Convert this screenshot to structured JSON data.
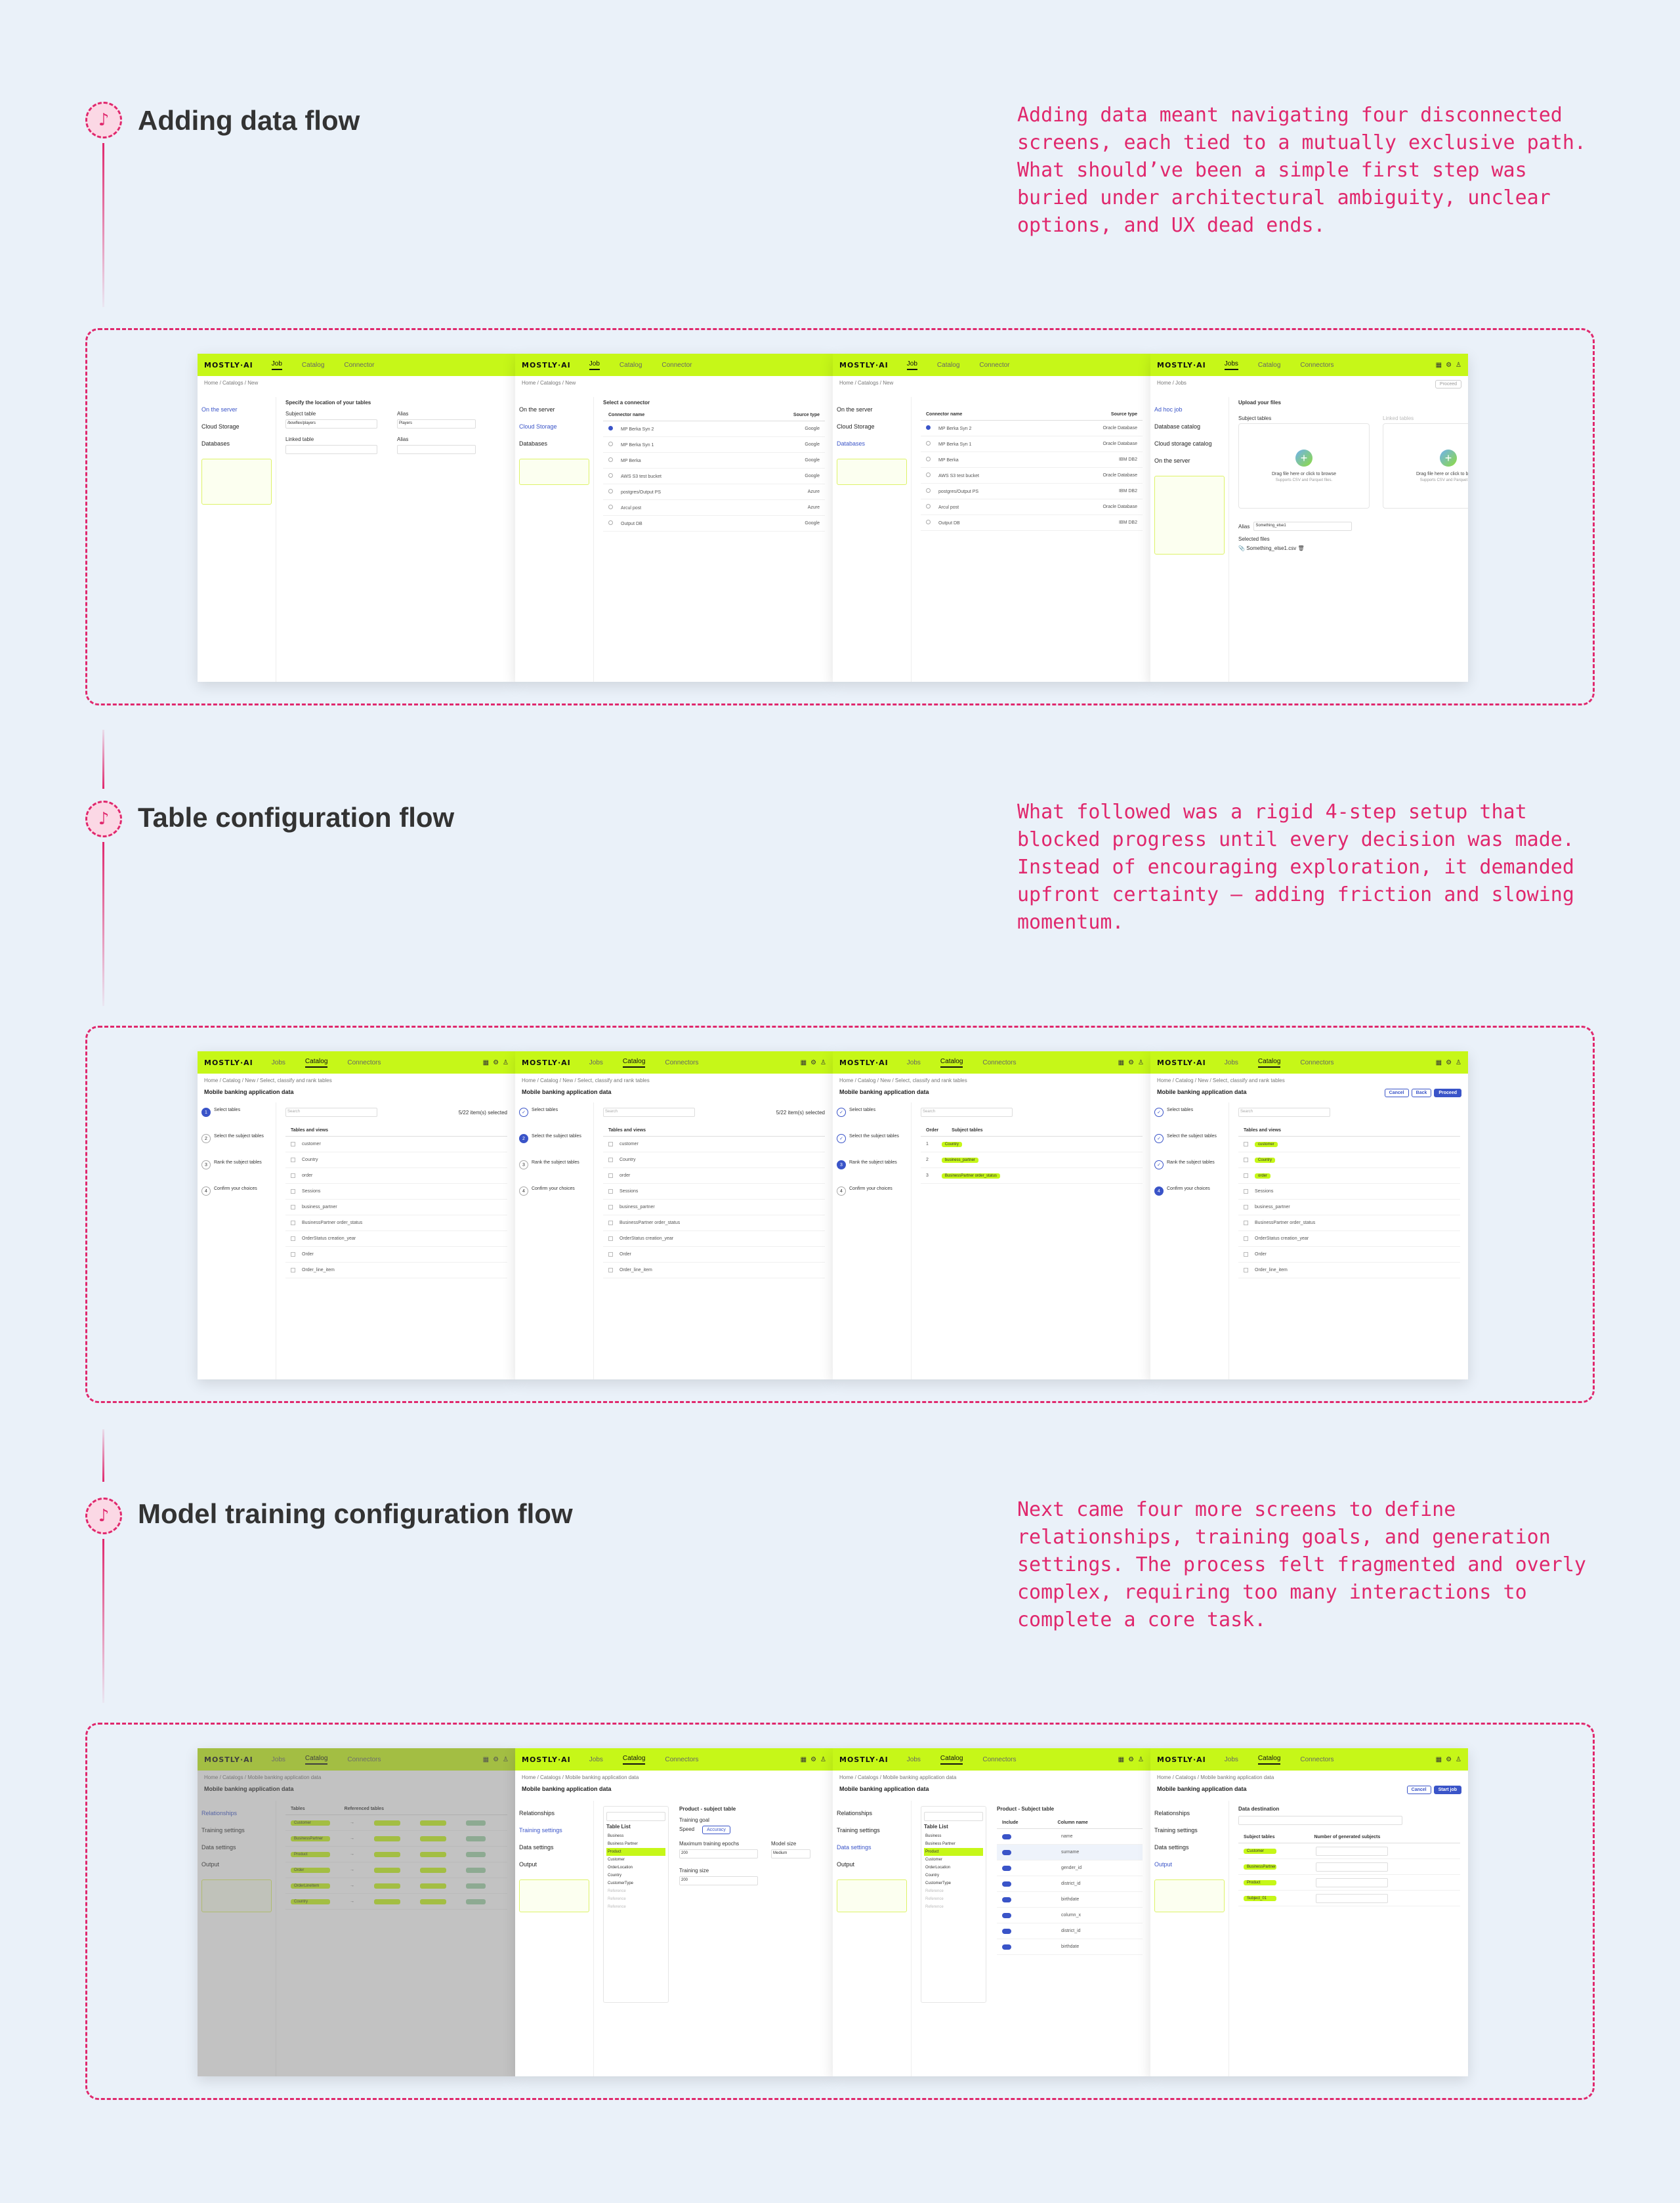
{
  "sections": [
    {
      "title": "Adding data flow",
      "description": "Adding data meant navigating four disconnected screens, each tied to a mutually exclusive path. What should’ve been a simple first step was buried under architectural ambiguity, unclear options, and UX dead ends."
    },
    {
      "title": "Table configuration flow",
      "description": "What followed was a rigid 4-step setup that blocked progress until every decision was made. Instead of encouraging exploration, it demanded upfront certainty — adding friction and slowing momentum."
    },
    {
      "title": "Model training configuration flow",
      "description": "Next came four more screens to define relationships, training goals, and generation settings. The process felt fragmented and overly complex, requiring too many interactions to complete a core task."
    }
  ],
  "app": {
    "logo": "MOSTLY·AI",
    "nav_a": [
      "Job",
      "Catalog",
      "Connector"
    ],
    "nav_b": [
      "Jobs",
      "Catalog",
      "Connectors"
    ]
  },
  "flow1": {
    "crumb": "Home / Catalogs / New",
    "crumb4": "Home / Jobs",
    "side": [
      "On the server",
      "Cloud Storage",
      "Databases"
    ],
    "side4": [
      "Ad hoc job",
      "Database catalog",
      "Cloud storage catalog",
      "On the server"
    ],
    "s1_heading": "Specify the location of your tables",
    "s1_labels": [
      "Subject table",
      "Alias",
      "Linked table",
      "Alias"
    ],
    "s1_values": [
      "/bowflex/players",
      "Players"
    ],
    "s2_heading": "Select a connector",
    "conn_header": [
      "Connector name",
      "Source type"
    ],
    "connectors": [
      "MP Berka Syn 2",
      "MP Berka Syn 1",
      "MP Berka",
      "AWS S3 test bucket",
      "postgres/Output PS",
      "Arcul post",
      "Output DB"
    ],
    "sources2": [
      "Google",
      "Google",
      "Google",
      "Google",
      "Azure",
      "Azure",
      "Google"
    ],
    "sources3": [
      "Oracle Database",
      "Oracle Database",
      "IBM DB2",
      "Oracle Database",
      "IBM DB2",
      "Oracle Database",
      "IBM DB2"
    ],
    "s4_heading": "Upload your files",
    "s4_labels": [
      "Subject tables",
      "Linked tables"
    ],
    "upload_title": "Drag file here or click to browse",
    "upload_sub": "Supports CSV and Parquet files.",
    "s4_alias": "Alias",
    "s4_alias_val": "Something_else1",
    "s4_selected": "Selected files",
    "s4_file": "Something_else1.csv",
    "proceed": "Proceed"
  },
  "flow2": {
    "crumb": "Home / Catalog / New / Select, classify and rank tables",
    "title": "Mobile banking application data",
    "steps": [
      "Select tables",
      "Select the subject tables",
      "Rank the subject tables",
      "Confirm your choices"
    ],
    "search": "Search",
    "selected": "5/22 item(s) selected",
    "th": "Tables and views",
    "tables": [
      "customer",
      "Country",
      "order",
      "Sessions",
      "business_partner",
      "BusinessPartner order_status",
      "OrderStatus creation_year",
      "Order",
      "Order_line_item"
    ],
    "rank_header": [
      "Order",
      "Subject tables"
    ],
    "rank_rows": [
      "Country",
      "business_partner",
      "BusinessPartner order_status"
    ],
    "buttons": [
      "Cancel",
      "Back",
      "Proceed"
    ]
  },
  "flow3": {
    "crumb": "Home / Catalogs / Mobile banking application data",
    "title": "Mobile banking application data",
    "side": [
      "Relationships",
      "Training settings",
      "Data settings",
      "Output"
    ],
    "s1_th": [
      "Tables",
      "Referenced tables"
    ],
    "s1_rows": [
      "Customer",
      "BusinessPartner",
      "Product",
      "Order",
      "OrderLineItem",
      "Country"
    ],
    "table_list": "Table List",
    "list_items": [
      "Business",
      "Business Partner",
      "Product",
      "Customer",
      "OrderLocation",
      "Country",
      "CustomerType",
      "Reference",
      "Reference",
      "Reference"
    ],
    "s2_heading": "Product - subject table",
    "s2_goal": "Training goal",
    "s2_goal_opts": [
      "Speed",
      "Accuracy"
    ],
    "s2_epochs": "Maximum training epochs",
    "s2_epochs_val": "200",
    "s2_model": "Model size",
    "s2_model_val": "Medium",
    "s2_size": "Training size",
    "s2_size_val": "200",
    "s3_heading": "Product - Subject table",
    "s3_th": [
      "Include",
      "Column name"
    ],
    "s3_cols": [
      "name",
      "surname",
      "gender_id",
      "district_id",
      "birthdate",
      "column_x",
      "district_id",
      "birthdate"
    ],
    "s4_heading": "Data destination",
    "s4_th": [
      "Subject tables",
      "Number of generated subjects"
    ],
    "s4_rows": [
      "Customer",
      "BusinessPartner",
      "Product",
      "Subject_01"
    ],
    "buttons": [
      "Cancel",
      "Start job"
    ]
  }
}
